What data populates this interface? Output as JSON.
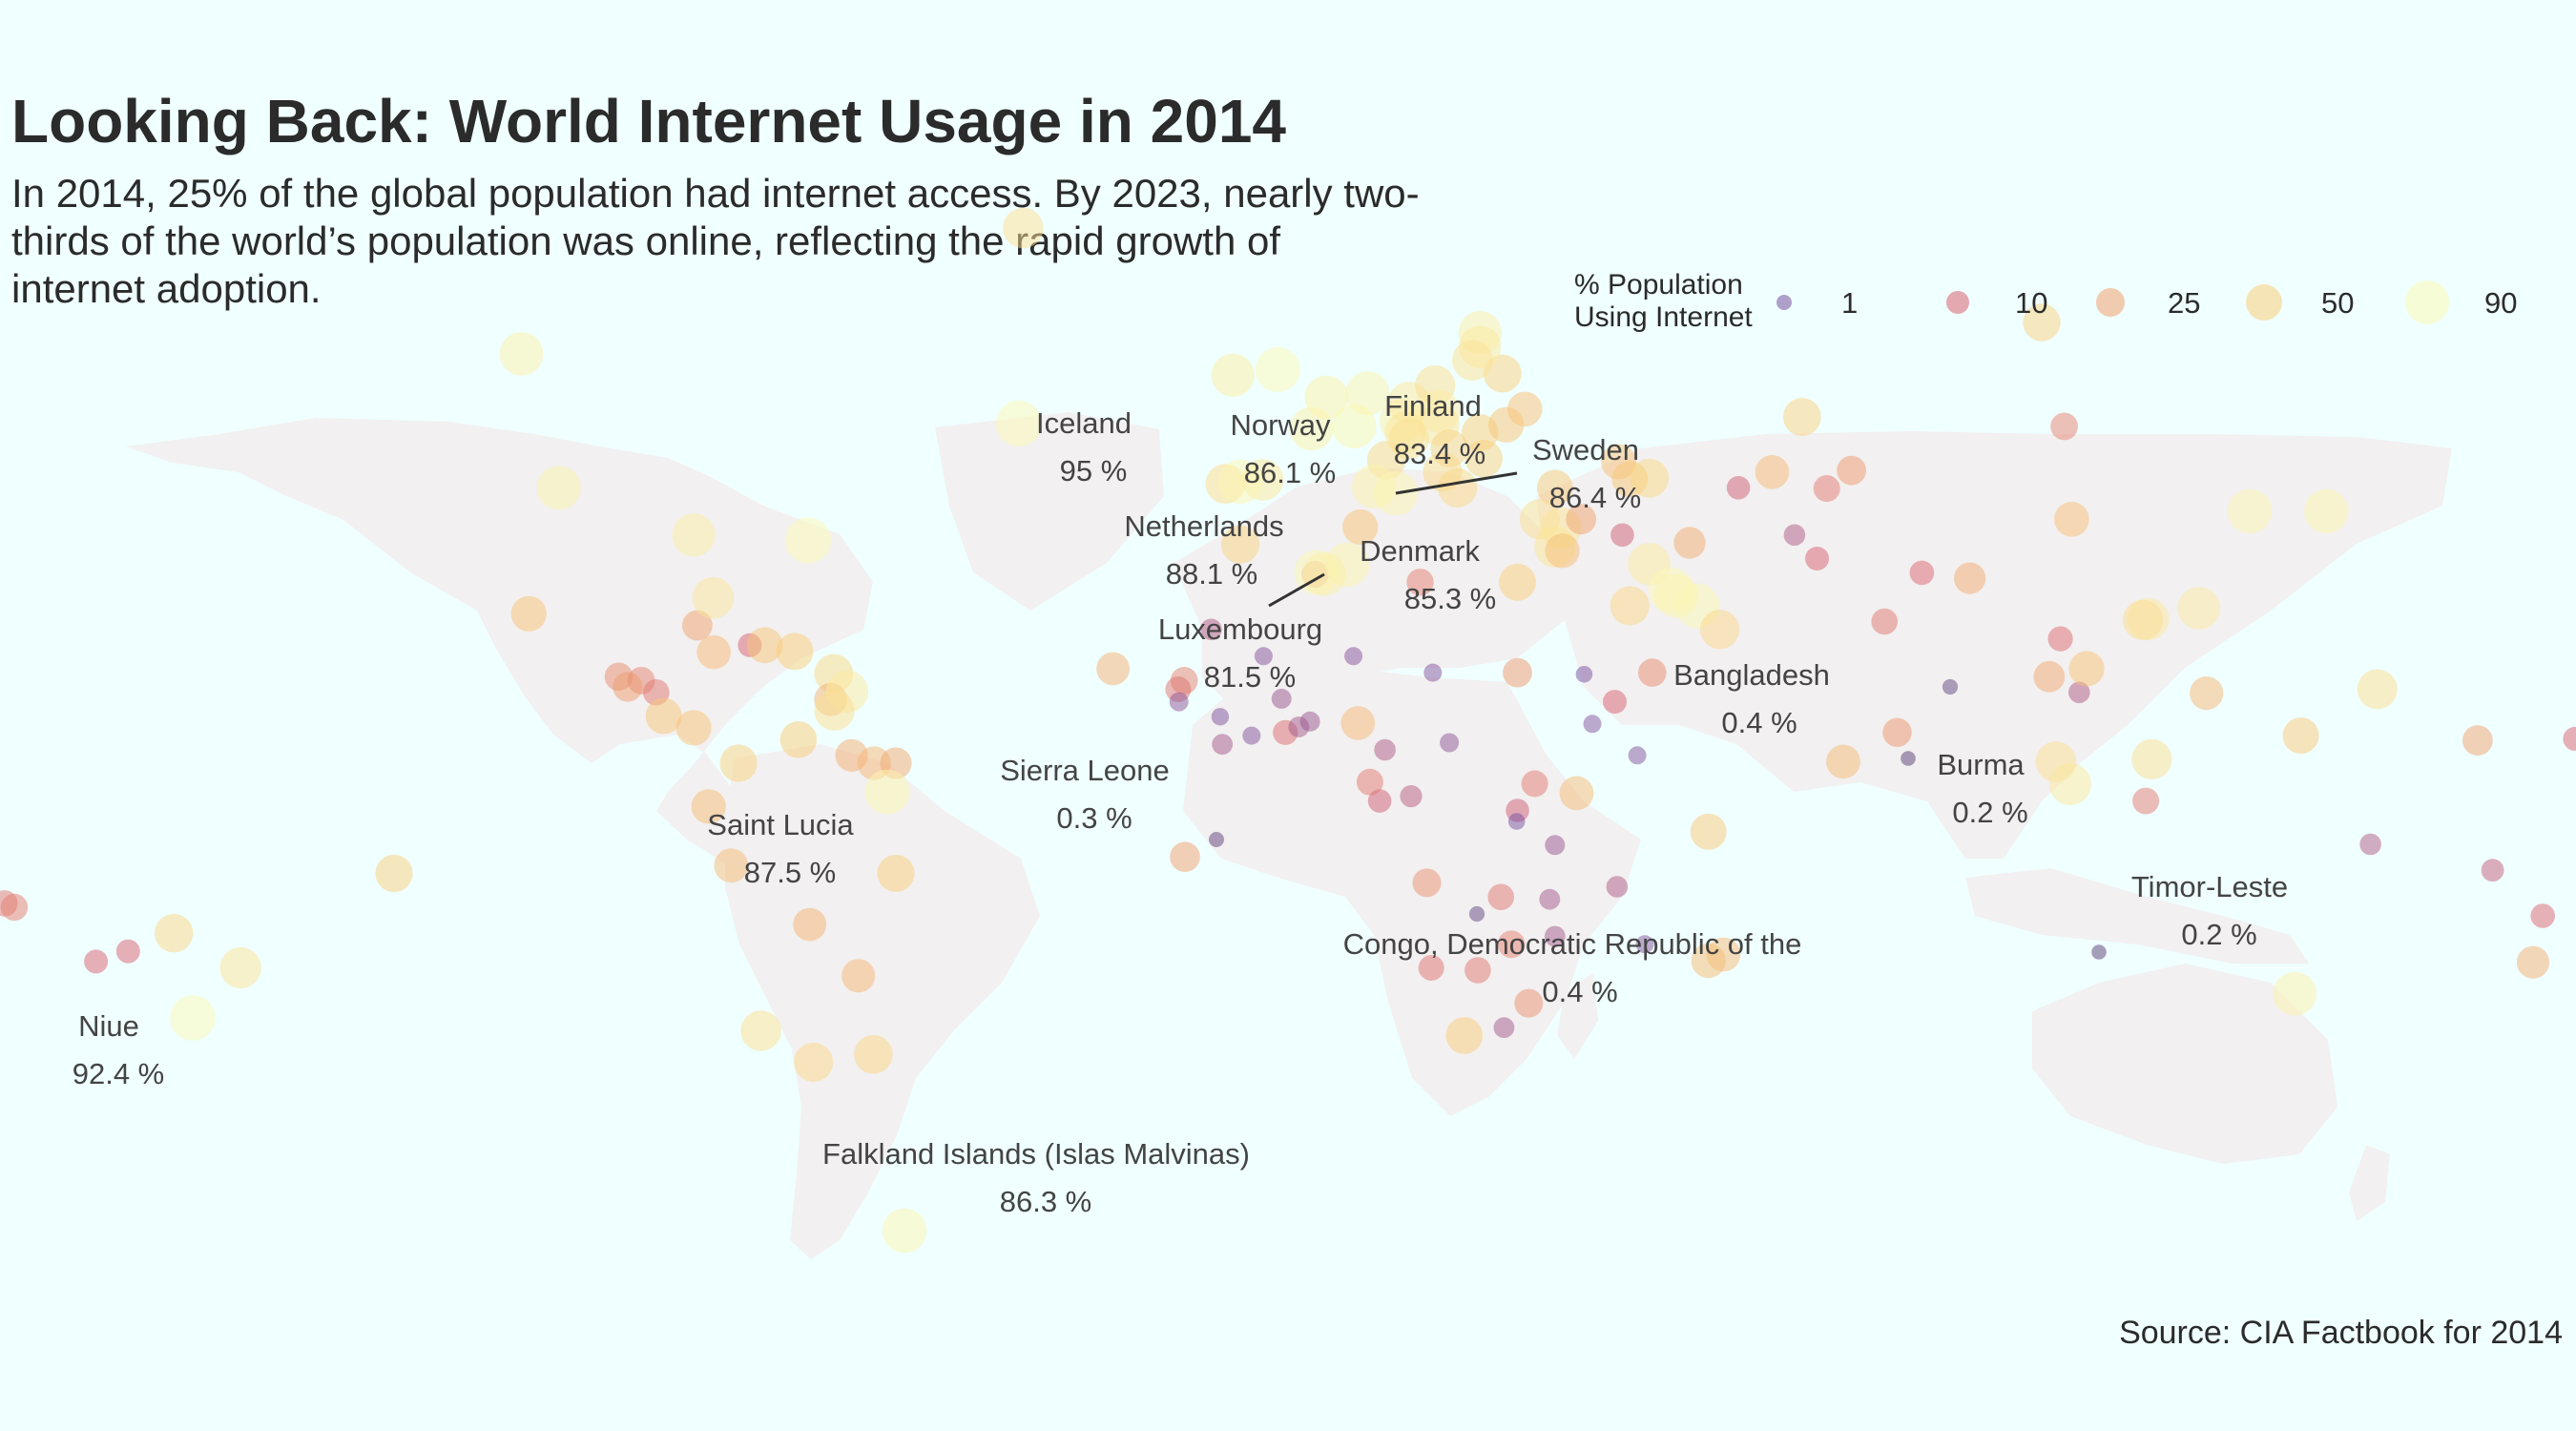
{
  "title": "Looking Back: World Internet Usage in 2014",
  "subtitle": "In 2014, 25% of the global population had internet access. By 2023, nearly two-thirds of the world’s population was online, reflecting the rapid growth of internet adoption.",
  "source": "Source: CIA Factbook for 2014",
  "colors": {
    "background": "#f0ffff",
    "land": "#f2f0f0",
    "text": "#2b2b2b"
  },
  "legend": {
    "title": "% Population\nUsing Internet",
    "items": [
      {
        "label": "1",
        "value": 1
      },
      {
        "label": "10",
        "value": 10
      },
      {
        "label": "25",
        "value": 25
      },
      {
        "label": "50",
        "value": 50
      },
      {
        "label": "90",
        "value": 90
      }
    ]
  },
  "chart_data": {
    "type": "scatter",
    "geo": "world-map",
    "size_and_color_by": "% Population Using Internet",
    "labeled_points": [
      {
        "name": "Iceland",
        "value_label": "95 %",
        "value": 95
      },
      {
        "name": "Norway",
        "value_label": "86.1 %",
        "value": 86.1
      },
      {
        "name": "Finland",
        "value_label": "83.4 %",
        "value": 83.4
      },
      {
        "name": "Sweden",
        "value_label": "86.4 %",
        "value": 86.4
      },
      {
        "name": "Netherlands",
        "value_label": "88.1 %",
        "value": 88.1
      },
      {
        "name": "Denmark",
        "value_label": "85.3 %",
        "value": 85.3
      },
      {
        "name": "Luxembourg",
        "value_label": "81.5 %",
        "value": 81.5
      },
      {
        "name": "Bangladesh",
        "value_label": "0.4 %",
        "value": 0.4
      },
      {
        "name": "Sierra Leone",
        "value_label": "0.3 %",
        "value": 0.3
      },
      {
        "name": "Burma",
        "value_label": "0.2 %",
        "value": 0.2
      },
      {
        "name": "Saint Lucia",
        "value_label": "87.5 %",
        "value": 87.5
      },
      {
        "name": "Timor-Leste",
        "value_label": "0.2 %",
        "value": 0.2
      },
      {
        "name": "Congo, Democratic Republic of the",
        "value_label": "0.4 %",
        "value": 0.4
      },
      {
        "name": "Niue",
        "value_label": "92.4 %",
        "value": 92.4
      },
      {
        "name": "Falkland Islands (Islas Malvinas)",
        "value_label": "86.3 %",
        "value": 86.3
      }
    ],
    "other_points": [
      {
        "lon": -103,
        "lat": 56,
        "value": 81
      },
      {
        "lon": -98,
        "lat": 39,
        "value": 84
      },
      {
        "lon": -102,
        "lat": 23,
        "value": 44
      },
      {
        "lon": -80,
        "lat": 33,
        "value": 78
      },
      {
        "lon": -90,
        "lat": 15,
        "value": 20
      },
      {
        "lon": -87,
        "lat": 14.5,
        "value": 18
      },
      {
        "lon": -88.8,
        "lat": 13.7,
        "value": 24
      },
      {
        "lon": -85,
        "lat": 13,
        "value": 15
      },
      {
        "lon": -84,
        "lat": 10,
        "value": 46
      },
      {
        "lon": -80,
        "lat": 8.5,
        "value": 44
      },
      {
        "lon": -79.5,
        "lat": 21.5,
        "value": 26
      },
      {
        "lon": -77.3,
        "lat": 18.1,
        "value": 38
      },
      {
        "lon": -72.5,
        "lat": 19,
        "value": 10
      },
      {
        "lon": -70.5,
        "lat": 19,
        "value": 46
      },
      {
        "lon": -66.5,
        "lat": 18.2,
        "value": 50
      },
      {
        "lon": -61.3,
        "lat": 15.4,
        "value": 59
      },
      {
        "lon": -61.7,
        "lat": 12.1,
        "value": 35
      },
      {
        "lon": -59.5,
        "lat": 13.1,
        "value": 75
      },
      {
        "lon": -61.2,
        "lat": 10.7,
        "value": 65
      },
      {
        "lon": -66,
        "lat": 7,
        "value": 49
      },
      {
        "lon": -74,
        "lat": 4,
        "value": 52
      },
      {
        "lon": -78,
        "lat": -1.5,
        "value": 40
      },
      {
        "lon": -75,
        "lat": -9,
        "value": 39
      },
      {
        "lon": -58.9,
        "lat": 5,
        "value": 33
      },
      {
        "lon": -55.9,
        "lat": 4,
        "value": 37
      },
      {
        "lon": -53,
        "lat": 4,
        "value": 30
      },
      {
        "lon": -53,
        "lat": -10,
        "value": 51
      },
      {
        "lon": -64.5,
        "lat": -16.5,
        "value": 35
      },
      {
        "lon": -58,
        "lat": -23,
        "value": 37
      },
      {
        "lon": -64,
        "lat": -34,
        "value": 60
      },
      {
        "lon": -71,
        "lat": -30,
        "value": 66
      },
      {
        "lon": -56,
        "lat": -33,
        "value": 58
      },
      {
        "lon": -9,
        "lat": 39.5,
        "value": 62
      },
      {
        "lon": -4,
        "lat": 40,
        "value": 72
      },
      {
        "lon": 2.5,
        "lat": 46.5,
        "value": 82
      },
      {
        "lon": -2,
        "lat": 54,
        "value": 90
      },
      {
        "lon": -8,
        "lat": 53.3,
        "value": 78
      },
      {
        "lon": 4.5,
        "lat": 50.5,
        "value": 82
      },
      {
        "lon": 10,
        "lat": 51,
        "value": 84
      },
      {
        "lon": 8.2,
        "lat": 46.8,
        "value": 87
      },
      {
        "lon": 12.5,
        "lat": 42.5,
        "value": 58
      },
      {
        "lon": 14.5,
        "lat": 47.5,
        "value": 81
      },
      {
        "lon": 15.5,
        "lat": 49.8,
        "value": 74
      },
      {
        "lon": 19,
        "lat": 52,
        "value": 65
      },
      {
        "lon": 19.5,
        "lat": 48.7,
        "value": 77
      },
      {
        "lon": 19.5,
        "lat": 47,
        "value": 72
      },
      {
        "lon": 15,
        "lat": 46,
        "value": 72
      },
      {
        "lon": 15.5,
        "lat": 45.2,
        "value": 67
      },
      {
        "lon": 20.9,
        "lat": 44,
        "value": 53
      },
      {
        "lon": 25,
        "lat": 46,
        "value": 50
      },
      {
        "lon": 25.5,
        "lat": 42.7,
        "value": 53
      },
      {
        "lon": 22,
        "lat": 39,
        "value": 60
      },
      {
        "lon": 28,
        "lat": 53.5,
        "value": 54
      },
      {
        "lon": 31,
        "lat": 49,
        "value": 42
      },
      {
        "lon": 28.5,
        "lat": 47,
        "value": 45
      },
      {
        "lon": 25,
        "lat": 58.7,
        "value": 80
      },
      {
        "lon": 25,
        "lat": 56.9,
        "value": 75
      },
      {
        "lon": 24,
        "lat": 55.2,
        "value": 68
      },
      {
        "lon": 20,
        "lat": 41,
        "value": 60
      },
      {
        "lon": 35,
        "lat": 39,
        "value": 46
      },
      {
        "lon": 33,
        "lat": 35,
        "value": 65
      },
      {
        "lon": 35.8,
        "lat": 33.9,
        "value": 70
      },
      {
        "lon": 35,
        "lat": 31.5,
        "value": 71
      },
      {
        "lon": 36,
        "lat": 31,
        "value": 41
      },
      {
        "lon": 38.5,
        "lat": 35,
        "value": 26
      },
      {
        "lon": 44,
        "lat": 33,
        "value": 9
      },
      {
        "lon": 43.5,
        "lat": 42.3,
        "value": 43
      },
      {
        "lon": 45,
        "lat": 40.1,
        "value": 46
      },
      {
        "lon": 47.6,
        "lat": 40.2,
        "value": 59
      },
      {
        "lon": 45,
        "lat": 24,
        "value": 60
      },
      {
        "lon": 47.6,
        "lat": 29.3,
        "value": 75
      },
      {
        "lon": 50.5,
        "lat": 26,
        "value": 90
      },
      {
        "lon": 51.2,
        "lat": 25.3,
        "value": 85
      },
      {
        "lon": 54,
        "lat": 24,
        "value": 88
      },
      {
        "lon": 57,
        "lat": 21,
        "value": 60
      },
      {
        "lon": 48,
        "lat": 15.5,
        "value": 20
      },
      {
        "lon": 53,
        "lat": 32,
        "value": 31
      },
      {
        "lon": 59.5,
        "lat": 39,
        "value": 9
      },
      {
        "lon": 64,
        "lat": 41,
        "value": 38
      },
      {
        "lon": 74.6,
        "lat": 41.2,
        "value": 23
      },
      {
        "lon": 71.3,
        "lat": 38.9,
        "value": 16
      },
      {
        "lon": 67,
        "lat": 33,
        "value": 6
      },
      {
        "lon": 70,
        "lat": 30,
        "value": 10
      },
      {
        "lon": 68,
        "lat": 48,
        "value": 54
      },
      {
        "lon": 100,
        "lat": 60,
        "value": 53
      },
      {
        "lon": 103,
        "lat": 46.8,
        "value": 18
      },
      {
        "lon": 104,
        "lat": 35,
        "value": 42
      },
      {
        "lon": 127.8,
        "lat": 36,
        "value": 85
      },
      {
        "lon": 138,
        "lat": 36,
        "value": 86
      },
      {
        "lon": 121,
        "lat": 23.7,
        "value": 76
      },
      {
        "lon": 114.2,
        "lat": 22.3,
        "value": 73
      },
      {
        "lon": 113.5,
        "lat": 22.2,
        "value": 65
      },
      {
        "lon": 79,
        "lat": 22,
        "value": 15
      },
      {
        "lon": 84,
        "lat": 28.2,
        "value": 11
      },
      {
        "lon": 90.4,
        "lat": 27.5,
        "value": 30
      },
      {
        "lon": 80.7,
        "lat": 7.9,
        "value": 22
      },
      {
        "lon": 73.5,
        "lat": 4.2,
        "value": 39
      },
      {
        "lon": 101,
        "lat": 15,
        "value": 29
      },
      {
        "lon": 105,
        "lat": 13,
        "value": 6
      },
      {
        "lon": 102.5,
        "lat": 19.8,
        "value": 12
      },
      {
        "lon": 106,
        "lat": 16,
        "value": 44
      },
      {
        "lon": 101.9,
        "lat": 4.2,
        "value": 67
      },
      {
        "lon": 103.8,
        "lat": 1.35,
        "value": 73
      },
      {
        "lon": 114.7,
        "lat": 4.5,
        "value": 65
      },
      {
        "lon": 113.9,
        "lat": -0.8,
        "value": 16
      },
      {
        "lon": 122,
        "lat": 12.9,
        "value": 37
      },
      {
        "lon": 144.8,
        "lat": 13.4,
        "value": 64
      },
      {
        "lon": 134.6,
        "lat": 7.5,
        "value": 47
      },
      {
        "lon": 143.9,
        "lat": -6.3,
        "value": 6
      },
      {
        "lon": 160.2,
        "lat": -9.6,
        "value": 8
      },
      {
        "lon": 166.9,
        "lat": -15.4,
        "value": 11
      },
      {
        "lon": 165.6,
        "lat": -21.3,
        "value": 33
      },
      {
        "lon": 178,
        "lat": -17.7,
        "value": 35
      },
      {
        "lon": 179.2,
        "lat": -8.5,
        "value": 25
      },
      {
        "lon": 158.2,
        "lat": 6.9,
        "value": 26
      },
      {
        "lon": 171.2,
        "lat": 7.1,
        "value": 10
      },
      {
        "lon": 173,
        "lat": 1.4,
        "value": 12
      },
      {
        "lon": 133.8,
        "lat": -25.3,
        "value": 83
      },
      {
        "lon": 174.9,
        "lat": -40.9,
        "value": 82
      },
      {
        "lon": -172,
        "lat": -13.8,
        "value": 15
      },
      {
        "lon": -175.2,
        "lat": -21.2,
        "value": 35
      },
      {
        "lon": -159.8,
        "lat": -21.2,
        "value": 10
      },
      {
        "lon": -149.4,
        "lat": -17.6,
        "value": 57
      },
      {
        "lon": -155.5,
        "lat": -19.9,
        "value": 10
      },
      {
        "lon": -170.7,
        "lat": -14.3,
        "value": 17
      },
      {
        "lon": -140.5,
        "lat": -22,
        "value": 70
      },
      {
        "lon": -120,
        "lat": -10,
        "value": 52
      },
      {
        "lon": -36,
        "lat": 72,
        "value": 66
      },
      {
        "lon": -64.7,
        "lat": 32.3,
        "value": 95
      },
      {
        "lon": -77.4,
        "lat": 25.0,
        "value": 72
      },
      {
        "lon": -7,
        "lat": 31.8,
        "value": 56
      },
      {
        "lon": 3,
        "lat": 28,
        "value": 17
      },
      {
        "lon": 9,
        "lat": 34,
        "value": 44
      },
      {
        "lon": 17,
        "lat": 27,
        "value": 17
      },
      {
        "lon": 30,
        "lat": 27,
        "value": 50
      },
      {
        "lon": 30,
        "lat": 15.5,
        "value": 23
      },
      {
        "lon": 40,
        "lat": 9,
        "value": 2
      },
      {
        "lon": 38.9,
        "lat": 15.3,
        "value": 1
      },
      {
        "lon": 43,
        "lat": 11.8,
        "value": 10
      },
      {
        "lon": 46,
        "lat": 5,
        "value": 2
      },
      {
        "lon": 37.9,
        "lat": 0.2,
        "value": 39
      },
      {
        "lon": 32.3,
        "lat": 1.4,
        "value": 16
      },
      {
        "lon": 30,
        "lat": -2,
        "value": 9
      },
      {
        "lon": 29.9,
        "lat": -3.4,
        "value": 1
      },
      {
        "lon": 35,
        "lat": -6.4,
        "value": 4
      },
      {
        "lon": 35,
        "lat": -18,
        "value": 5
      },
      {
        "lon": 34.3,
        "lat": -13.3,
        "value": 5
      },
      {
        "lon": 27.8,
        "lat": -13,
        "value": 15
      },
      {
        "lon": 29.2,
        "lat": -19,
        "value": 18
      },
      {
        "lon": 24.7,
        "lat": -22.3,
        "value": 15
      },
      {
        "lon": 18.5,
        "lat": -22,
        "value": 14
      },
      {
        "lon": 22.9,
        "lat": -30.6,
        "value": 49
      },
      {
        "lon": 17.9,
        "lat": -11.2,
        "value": 21
      },
      {
        "lon": 15.8,
        "lat": -0.2,
        "value": 7
      },
      {
        "lon": 11.6,
        "lat": -0.8,
        "value": 9
      },
      {
        "lon": 10.3,
        "lat": 1.6,
        "value": 16
      },
      {
        "lon": 12.3,
        "lat": 5.7,
        "value": 6
      },
      {
        "lon": 20.9,
        "lat": 6.6,
        "value": 3
      },
      {
        "lon": 18.7,
        "lat": 15.5,
        "value": 2
      },
      {
        "lon": 8.7,
        "lat": 9.1,
        "value": 38
      },
      {
        "lon": 8.1,
        "lat": 17.6,
        "value": 2
      },
      {
        "lon": -1.5,
        "lat": 12.2,
        "value": 4
      },
      {
        "lon": -3.9,
        "lat": 17.6,
        "value": 2
      },
      {
        "lon": -10.9,
        "lat": 21,
        "value": 6
      },
      {
        "lon": -14.5,
        "lat": 14.5,
        "value": 18
      },
      {
        "lon": -15.3,
        "lat": 13.4,
        "value": 14
      },
      {
        "lon": -15.2,
        "lat": 11.8,
        "value": 3
      },
      {
        "lon": -9.7,
        "lat": 9.9,
        "value": 1.6
      },
      {
        "lon": -9.4,
        "lat": 6.4,
        "value": 5
      },
      {
        "lon": -5.5,
        "lat": 7.5,
        "value": 2
      },
      {
        "lon": -1,
        "lat": 7.9,
        "value": 12
      },
      {
        "lon": 0.8,
        "lat": 8.6,
        "value": 5
      },
      {
        "lon": 2.3,
        "lat": 9.3,
        "value": 4
      },
      {
        "lon": -24,
        "lat": 16,
        "value": 35
      },
      {
        "lon": -14.4,
        "lat": -7.9,
        "value": 25
      },
      {
        "lon": 47,
        "lat": -19,
        "value": 2
      },
      {
        "lon": 57.5,
        "lat": -20.3,
        "value": 39
      },
      {
        "lon": 55.5,
        "lat": -4.7,
        "value": 47
      },
      {
        "lon": 55.5,
        "lat": -21.1,
        "value": 40
      },
      {
        "lon": 43.3,
        "lat": -11.7,
        "value": 6
      },
      {
        "lon": 31.5,
        "lat": -26.5,
        "value": 21
      },
      {
        "lon": 28.2,
        "lat": -29.6,
        "value": 5
      }
    ]
  }
}
